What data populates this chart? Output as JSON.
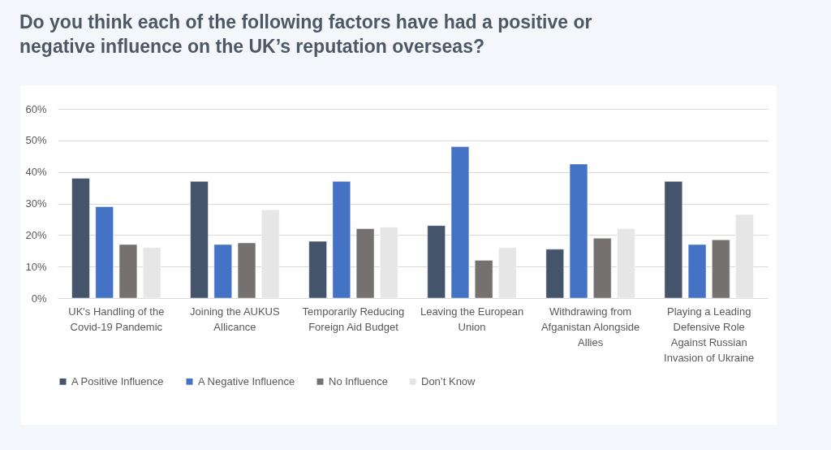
{
  "chart_data": {
    "type": "bar",
    "title": "Do you think each of the following factors have had a positive or negative influence on the UK’s reputation overseas?",
    "categories": [
      "UK's Handling of the Covid-19 Pandemic",
      "Joining the AUKUS Allicance",
      "Temporarily Reducing Foreign Aid Budget",
      "Leaving the European Union",
      "Withdrawing from Afganistan Alongside Allies",
      "Playing a Leading Defensive Role Against Russian Invasion of Ukraine"
    ],
    "series": [
      {
        "name": "A Positive Influence",
        "color": "#44546a",
        "values": [
          38,
          37,
          18,
          23,
          15.5,
          37
        ]
      },
      {
        "name": "A Negative Influence",
        "color": "#4472c4",
        "values": [
          29,
          17,
          37,
          48,
          42.5,
          17
        ]
      },
      {
        "name": "No Influence",
        "color": "#767171",
        "values": [
          17,
          17.5,
          22,
          12,
          19,
          18.5
        ]
      },
      {
        "name": "Don’t Know",
        "color": "#e7e6e6",
        "values": [
          16,
          28,
          22.5,
          16,
          22,
          26.5
        ]
      }
    ],
    "ylim": [
      0,
      60
    ],
    "yticks": [
      {
        "value": 0,
        "label": "0%"
      },
      {
        "value": 10,
        "label": "10%"
      },
      {
        "value": 20,
        "label": "20%"
      },
      {
        "value": 30,
        "label": "30%"
      },
      {
        "value": 40,
        "label": "40%"
      },
      {
        "value": 50,
        "label": "50%"
      },
      {
        "value": 60,
        "label": "60%"
      }
    ],
    "grid": "y",
    "legend": "bottom"
  }
}
